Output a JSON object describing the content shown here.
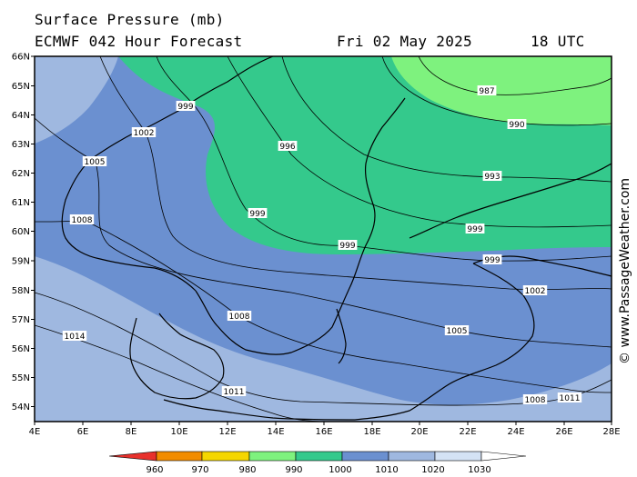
{
  "title": "Surface Pressure (mb)",
  "subtitle": "ECMWF 042 Hour Forecast",
  "date": "Fri 02 May 2025",
  "time": "18 UTC",
  "credit": "© www.PassageWeather.com",
  "lat_labels": [
    "66N",
    "65N",
    "64N",
    "63N",
    "62N",
    "61N",
    "60N",
    "59N",
    "58N",
    "57N",
    "56N",
    "55N",
    "54N"
  ],
  "lon_labels": [
    "4E",
    "6E",
    "8E",
    "10E",
    "12E",
    "14E",
    "16E",
    "18E",
    "20E",
    "22E",
    "24E",
    "26E",
    "28E"
  ],
  "isobar_labels": [
    "987",
    "990",
    "993",
    "996",
    "999",
    "999",
    "999",
    "999",
    "999",
    "1002",
    "1002",
    "1005",
    "1005",
    "1008",
    "1008",
    "1008",
    "1011",
    "1011",
    "1014"
  ],
  "legend": {
    "ticks": [
      "960",
      "970",
      "980",
      "990",
      "1000",
      "1010",
      "1020",
      "1030"
    ],
    "colors": [
      "#e8312c",
      "#f28c00",
      "#f4d600",
      "#7ef27e",
      "#34c98c",
      "#6b90d0",
      "#9fb8e0",
      "#d4e2f4",
      "#ffffff"
    ]
  },
  "colors": {
    "pressure_990_1000": "#34c98c",
    "pressure_980_990": "#7ef27e",
    "pressure_1000_1010": "#6b90d0",
    "pressure_1010_1020": "#9fb8e0"
  }
}
